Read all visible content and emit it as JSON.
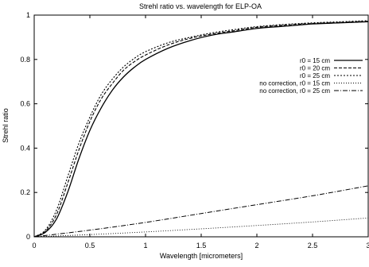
{
  "chart_data": {
    "type": "line",
    "title": "Strehl ratio vs. wavelength for ELP-OA",
    "xlabel": "Wavelength [micrometers]",
    "ylabel": "Strehl ratio",
    "xlim": [
      0,
      3
    ],
    "ylim": [
      0,
      1
    ],
    "grid": false,
    "legend_position": "right",
    "x_ticks": [
      0,
      0.5,
      1,
      1.5,
      2,
      2.5,
      3
    ],
    "y_ticks": [
      0,
      0.2,
      0.4,
      0.6,
      0.8,
      1
    ],
    "x_tick_labels": [
      "0",
      "0.5",
      "1",
      "1.5",
      "2",
      "2.5",
      "3"
    ],
    "y_tick_labels": [
      "0",
      "0.2",
      "0.4",
      "0.6",
      "0.8",
      "1"
    ],
    "series": [
      {
        "name": "r0 = 15 cm",
        "style": "solid",
        "x": [
          0,
          0.1,
          0.2,
          0.3,
          0.4,
          0.5,
          0.6,
          0.7,
          0.8,
          0.9,
          1.0,
          1.2,
          1.4,
          1.6,
          1.8,
          2.0,
          2.25,
          2.5,
          2.75,
          3.0
        ],
        "y": [
          0,
          0.02,
          0.08,
          0.2,
          0.35,
          0.48,
          0.58,
          0.66,
          0.72,
          0.765,
          0.8,
          0.85,
          0.885,
          0.91,
          0.925,
          0.94,
          0.95,
          0.96,
          0.965,
          0.97
        ]
      },
      {
        "name": "r0 = 20 cm",
        "style": "dashed",
        "x": [
          0,
          0.1,
          0.2,
          0.3,
          0.4,
          0.5,
          0.6,
          0.7,
          0.8,
          0.9,
          1.0,
          1.2,
          1.4,
          1.6,
          1.8,
          2.0,
          2.25,
          2.5,
          2.75,
          3.0
        ],
        "y": [
          0,
          0.025,
          0.1,
          0.24,
          0.39,
          0.52,
          0.62,
          0.69,
          0.75,
          0.79,
          0.82,
          0.865,
          0.895,
          0.915,
          0.93,
          0.945,
          0.955,
          0.962,
          0.967,
          0.972
        ]
      },
      {
        "name": "r0 = 25 cm",
        "style": "dotted",
        "x": [
          0,
          0.1,
          0.2,
          0.3,
          0.4,
          0.5,
          0.6,
          0.7,
          0.8,
          0.9,
          1.0,
          1.2,
          1.4,
          1.6,
          1.8,
          2.0,
          2.25,
          2.5,
          2.75,
          3.0
        ],
        "y": [
          0,
          0.03,
          0.12,
          0.27,
          0.42,
          0.54,
          0.64,
          0.71,
          0.765,
          0.805,
          0.835,
          0.875,
          0.9,
          0.92,
          0.935,
          0.948,
          0.958,
          0.965,
          0.97,
          0.975
        ]
      },
      {
        "name": "no correction, r0 = 15 cm",
        "style": "fine-dotted",
        "x": [
          0,
          0.5,
          1.0,
          1.5,
          2.0,
          2.5,
          3.0
        ],
        "y": [
          0,
          0.01,
          0.022,
          0.036,
          0.051,
          0.067,
          0.085
        ]
      },
      {
        "name": "no correction, r0 = 25 cm",
        "style": "dash-dot",
        "x": [
          0,
          0.5,
          1.0,
          1.5,
          2.0,
          2.5,
          3.0
        ],
        "y": [
          0,
          0.03,
          0.065,
          0.105,
          0.145,
          0.185,
          0.23
        ]
      }
    ]
  }
}
